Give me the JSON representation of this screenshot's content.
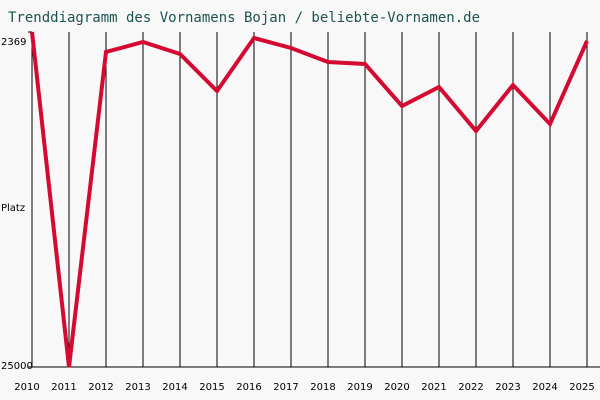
{
  "chart_data": {
    "type": "line",
    "title": "Trenddiagramm des Vornamens Bojan / beliebte-Vornamen.de",
    "y_label": "Platz",
    "categories": [
      "2010",
      "2011",
      "2012",
      "2013",
      "2014",
      "2015",
      "2016",
      "2017",
      "2018",
      "2019",
      "2020",
      "2021",
      "2022",
      "2023",
      "2024",
      "2025"
    ],
    "values": [
      2369,
      25000,
      3720,
      3045,
      3855,
      6355,
      2774,
      3450,
      4395,
      4530,
      7370,
      6085,
      9057,
      5950,
      8585,
      2977
    ],
    "color": "#d40a32",
    "ylim": [
      25000,
      2369
    ],
    "yticks": [
      2369,
      25000
    ],
    "grid": true
  }
}
